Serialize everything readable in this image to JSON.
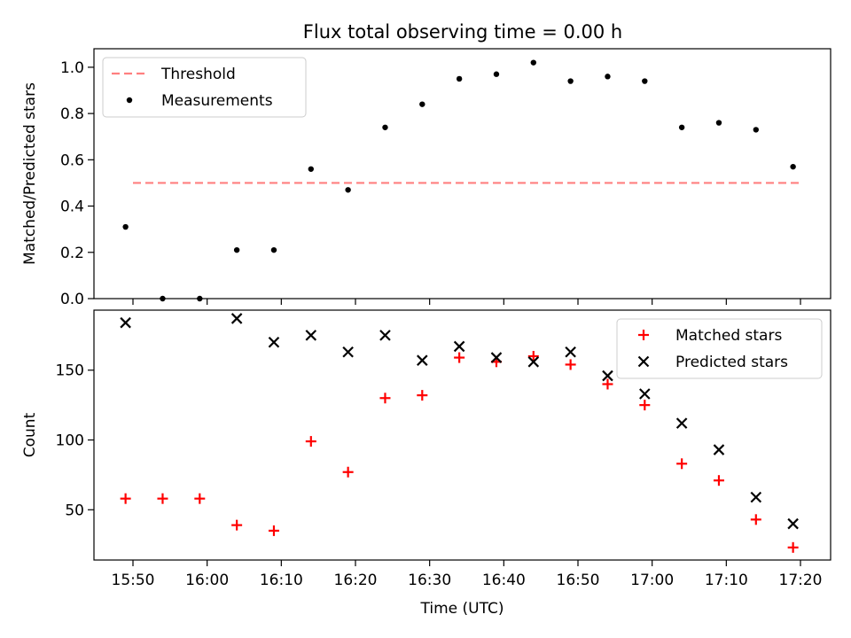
{
  "title": "Flux total observing time = 0.00 h",
  "colors": {
    "threshold": "#ff7f7f",
    "measurements": "#000000",
    "matched": "#ff0000",
    "predicted": "#000000"
  },
  "chart_data": [
    {
      "type": "scatter",
      "panel": "top",
      "ylabel": "Matched/Predicted stars",
      "xlabel": "",
      "ylim": [
        0,
        1.08
      ],
      "yticks": [
        "0.0",
        "0.2",
        "0.4",
        "0.6",
        "0.8",
        "1.0"
      ],
      "legend": "top-left",
      "threshold": {
        "name": "Threshold",
        "value": 0.5,
        "x": [
          "15:50",
          "17:20"
        ]
      },
      "series": [
        {
          "name": "Measurements",
          "x": [
            "15:49",
            "15:54",
            "15:59",
            "16:04",
            "16:09",
            "16:14",
            "16:19",
            "16:24",
            "16:29",
            "16:34",
            "16:39",
            "16:44",
            "16:49",
            "16:54",
            "16:59",
            "17:04",
            "17:09",
            "17:14",
            "17:19"
          ],
          "values": [
            0.31,
            0.0,
            0.0,
            0.21,
            0.21,
            0.56,
            0.47,
            0.74,
            0.84,
            0.95,
            0.97,
            1.02,
            0.94,
            0.96,
            0.94,
            0.74,
            0.76,
            0.73,
            0.57
          ]
        }
      ]
    },
    {
      "type": "scatter",
      "panel": "bottom",
      "ylabel": "Count",
      "xlabel": "Time (UTC)",
      "ylim": [
        14,
        193
      ],
      "yticks": [
        "50",
        "100",
        "150"
      ],
      "xticks": [
        "15:50",
        "16:00",
        "16:10",
        "16:20",
        "16:30",
        "16:40",
        "16:50",
        "17:00",
        "17:10",
        "17:20"
      ],
      "legend": "top-right",
      "series": [
        {
          "name": "Matched stars",
          "marker": "+",
          "x": [
            "15:49",
            "15:54",
            "15:59",
            "16:04",
            "16:09",
            "16:14",
            "16:19",
            "16:24",
            "16:29",
            "16:34",
            "16:39",
            "16:44",
            "16:49",
            "16:54",
            "16:59",
            "17:04",
            "17:09",
            "17:14",
            "17:19"
          ],
          "values": [
            58,
            58,
            58,
            39,
            35,
            99,
            77,
            130,
            132,
            159,
            156,
            160,
            154,
            140,
            125,
            83,
            71,
            43,
            23
          ]
        },
        {
          "name": "Predicted stars",
          "marker": "x",
          "x": [
            "15:49",
            "15:54",
            "15:59",
            "16:04",
            "16:09",
            "16:14",
            "16:19",
            "16:24",
            "16:29",
            "16:34",
            "16:39",
            "16:44",
            "16:49",
            "16:54",
            "16:59",
            "17:04",
            "17:09",
            "17:14",
            "17:19"
          ],
          "values": [
            184,
            null,
            null,
            187,
            170,
            175,
            163,
            175,
            157,
            167,
            159,
            156,
            163,
            146,
            133,
            112,
            93,
            59,
            40
          ]
        }
      ]
    }
  ]
}
